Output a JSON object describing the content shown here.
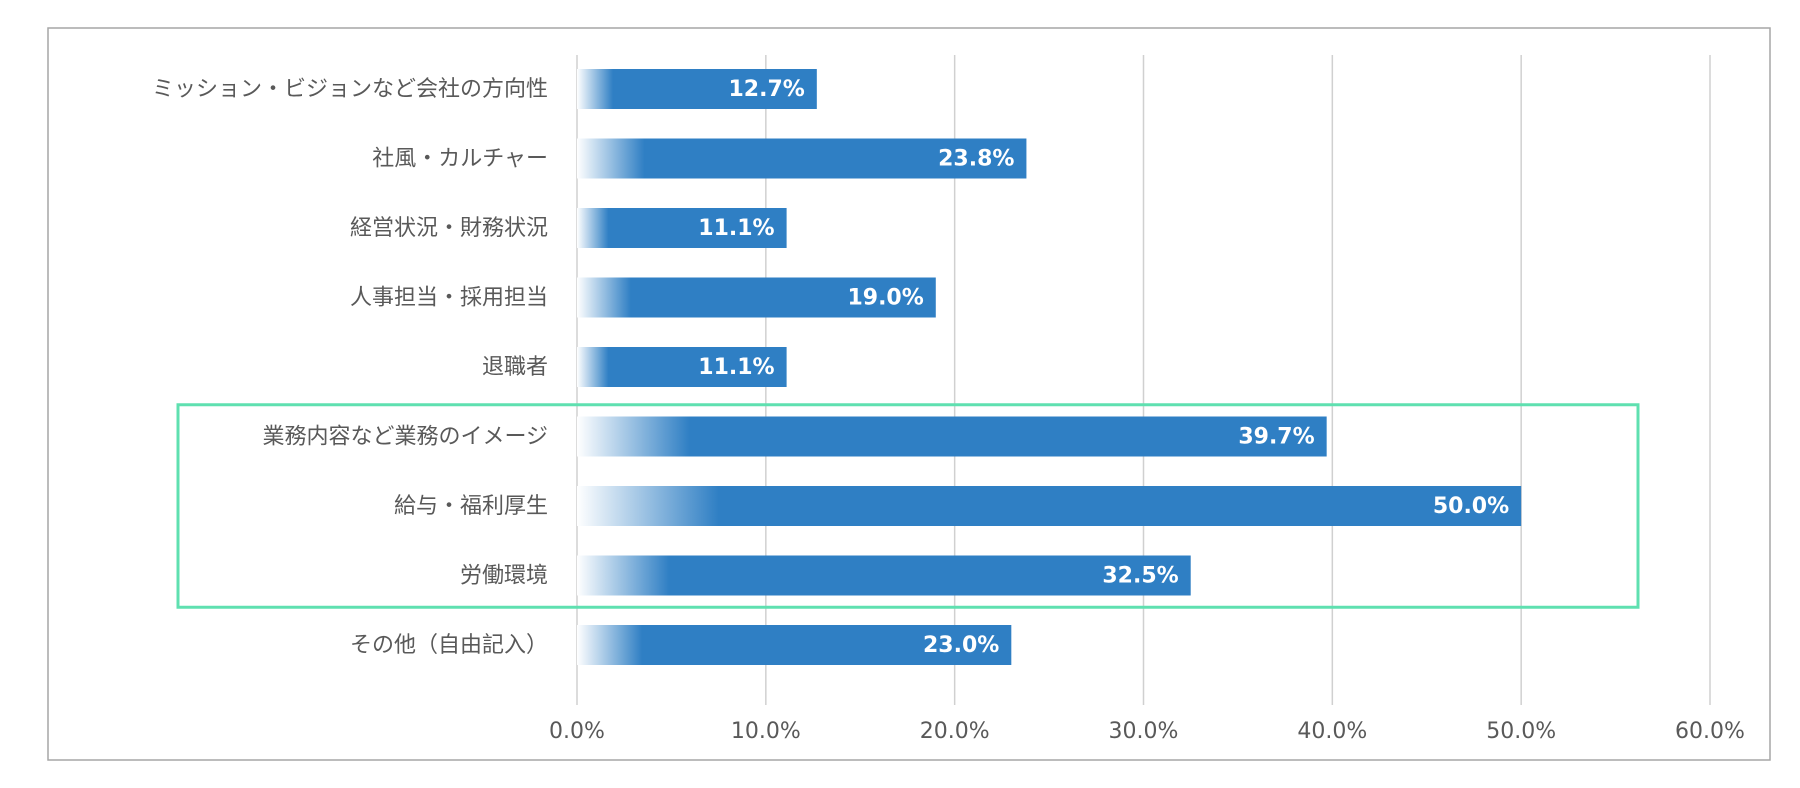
{
  "colors": {
    "bar": "#2f7fc4",
    "bar_fade": "#ffffff",
    "grid": "#d0d0d0",
    "frame": "#a6a6a6",
    "highlight": "#5fe0b0",
    "text": "#595959",
    "data_label": "#ffffff"
  },
  "chart_data": {
    "type": "bar",
    "orientation": "horizontal",
    "categories": [
      "ミッション・ビジョンなど会社の方向性",
      "社風・カルチャー",
      "経営状況・財務状況",
      "人事担当・採用担当",
      "退職者",
      "業務内容など業務のイメージ",
      "給与・福利厚生",
      "労働環境",
      "その他（自由記入）"
    ],
    "values": [
      12.7,
      23.8,
      11.1,
      19.0,
      11.1,
      39.7,
      50.0,
      32.5,
      23.0
    ],
    "data_labels": [
      "12.7%",
      "23.8%",
      "11.1%",
      "19.0%",
      "11.1%",
      "39.7%",
      "50.0%",
      "32.5%",
      "23.0%"
    ],
    "xlim": [
      0,
      60
    ],
    "x_ticks": [
      0,
      10,
      20,
      30,
      40,
      50,
      60
    ],
    "x_tick_labels": [
      "0.0%",
      "10.0%",
      "20.0%",
      "30.0%",
      "40.0%",
      "50.0%",
      "60.0%"
    ],
    "grid": true,
    "highlighted_categories": [
      "業務内容など業務のイメージ",
      "給与・福利厚生",
      "労働環境"
    ]
  }
}
